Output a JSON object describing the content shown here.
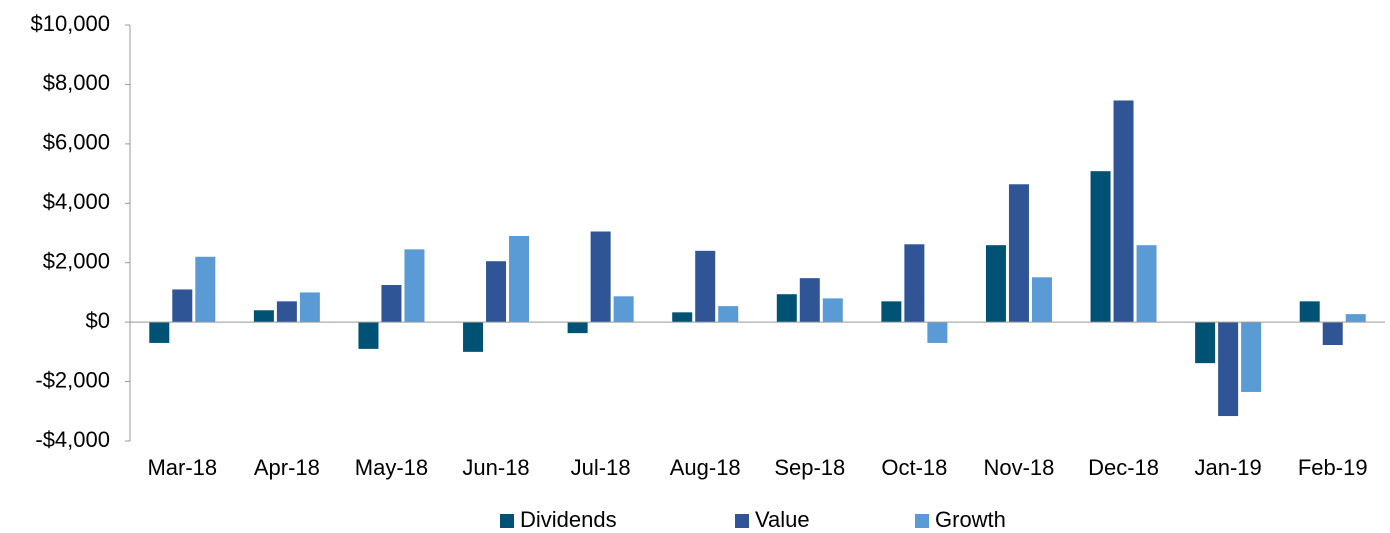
{
  "chart_data": {
    "type": "bar",
    "categories": [
      "Mar-18",
      "Apr-18",
      "May-18",
      "Jun-18",
      "Jul-18",
      "Aug-18",
      "Sep-18",
      "Oct-18",
      "Nov-18",
      "Dec-18",
      "Jan-19",
      "Feb-19"
    ],
    "series": [
      {
        "name": "Dividends",
        "color": "#005274",
        "values": [
          -700,
          400,
          -900,
          -1000,
          -370,
          330,
          940,
          700,
          2590,
          5080,
          -1380,
          700
        ]
      },
      {
        "name": "Value",
        "color": "#2f5597",
        "values": [
          1100,
          700,
          1250,
          2050,
          3050,
          2400,
          1480,
          2620,
          4640,
          7460,
          -3160,
          -770
        ]
      },
      {
        "name": "Growth",
        "color": "#5b9bd5",
        "values": [
          2200,
          1000,
          2450,
          2900,
          870,
          540,
          800,
          -700,
          1510,
          2590,
          -2350,
          270
        ]
      }
    ],
    "ylim": [
      -4000,
      10000
    ],
    "yticks": [
      {
        "value": -4000,
        "label": "-$4,000"
      },
      {
        "value": -2000,
        "label": "-$2,000"
      },
      {
        "value": 0,
        "label": "$0"
      },
      {
        "value": 2000,
        "label": "$2,000"
      },
      {
        "value": 4000,
        "label": "$4,000"
      },
      {
        "value": 6000,
        "label": "$6,000"
      },
      {
        "value": 8000,
        "label": "$8,000"
      },
      {
        "value": 10000,
        "label": "$10,000"
      }
    ],
    "legend": "bottom"
  }
}
